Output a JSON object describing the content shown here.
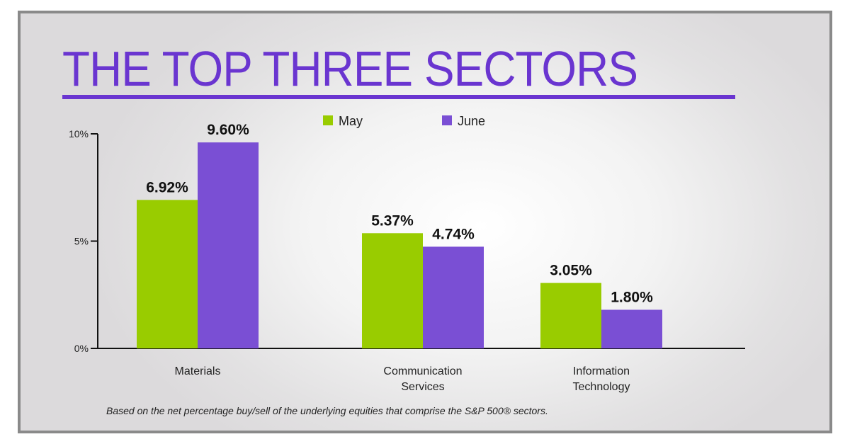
{
  "chart_data": {
    "type": "bar",
    "title": "THE TOP THREE SECTORS",
    "categories": [
      [
        "Materials"
      ],
      [
        "Communication",
        "Services"
      ],
      [
        "Information",
        "Technology"
      ]
    ],
    "series": [
      {
        "name": "May",
        "values": [
          6.92,
          5.37,
          3.05
        ],
        "labels": [
          "6.92%",
          "5.37%",
          "3.05%"
        ],
        "color": "#99cc00"
      },
      {
        "name": "June",
        "values": [
          9.6,
          4.74,
          1.8
        ],
        "labels": [
          "9.60%",
          "4.74%",
          "1.80%"
        ],
        "color": "#7a4fd4"
      }
    ],
    "ylim": [
      0,
      10
    ],
    "yticks": [
      {
        "value": 0,
        "label": "0%"
      },
      {
        "value": 5,
        "label": "5%"
      },
      {
        "value": 10,
        "label": "10%"
      }
    ],
    "legend": "top-center",
    "grid": false,
    "footnote": "Based on the net percentage buy/sell of the underlying equities that comprise the S&P 500® sectors.",
    "accent_color": "#6a35d0"
  }
}
